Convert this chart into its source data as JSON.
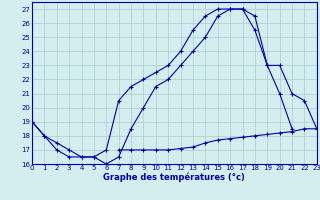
{
  "line1_x": [
    0,
    1,
    2,
    3,
    4,
    5,
    6,
    7,
    8,
    9,
    10,
    11,
    12,
    13,
    14,
    15,
    16,
    17,
    18,
    19,
    20,
    21
  ],
  "line1_y": [
    19,
    18,
    17,
    16.5,
    16.5,
    16.5,
    16,
    16.5,
    18.5,
    20.0,
    21.5,
    22.0,
    23.0,
    24.0,
    25.0,
    26.5,
    27.0,
    27.0,
    26.5,
    23.0,
    21.0,
    18.5
  ],
  "line2_x": [
    0,
    1,
    2,
    3,
    4,
    5,
    6,
    7,
    8,
    9,
    10,
    11,
    12,
    13,
    14,
    15,
    16,
    17,
    18,
    19,
    20,
    21,
    22,
    23
  ],
  "line2_y": [
    19.0,
    18.0,
    17.5,
    17.0,
    16.5,
    16.5,
    17.0,
    20.5,
    21.5,
    22.0,
    22.5,
    23.0,
    24.0,
    25.5,
    26.5,
    27.0,
    27.0,
    27.0,
    25.5,
    23.0,
    23.0,
    21.0,
    20.5,
    18.5
  ],
  "line3_x": [
    0,
    1,
    2,
    3,
    4,
    5,
    6,
    7,
    8,
    9,
    10,
    11,
    12,
    13,
    14,
    15,
    16,
    17,
    18,
    19,
    20,
    21,
    22,
    23
  ],
  "line3_y": [
    null,
    null,
    null,
    null,
    null,
    null,
    null,
    17.0,
    17.0,
    17.0,
    17.0,
    17.0,
    17.1,
    17.2,
    17.5,
    17.7,
    17.8,
    17.9,
    18.0,
    18.1,
    18.2,
    18.3,
    18.5,
    18.5
  ],
  "xlim": [
    0,
    23
  ],
  "ylim": [
    16,
    27.5
  ],
  "yticks": [
    16,
    17,
    18,
    19,
    20,
    21,
    22,
    23,
    24,
    25,
    26,
    27
  ],
  "xticks": [
    0,
    1,
    2,
    3,
    4,
    5,
    6,
    7,
    8,
    9,
    10,
    11,
    12,
    13,
    14,
    15,
    16,
    17,
    18,
    19,
    20,
    21,
    22,
    23
  ],
  "xlabel": "Graphe des températures (°c)",
  "line_color": "#0000aa",
  "bg_color": "#d4eef0",
  "grid_color": "#aaccd0",
  "marker": "+",
  "marker_size": 3,
  "lw": 0.8
}
